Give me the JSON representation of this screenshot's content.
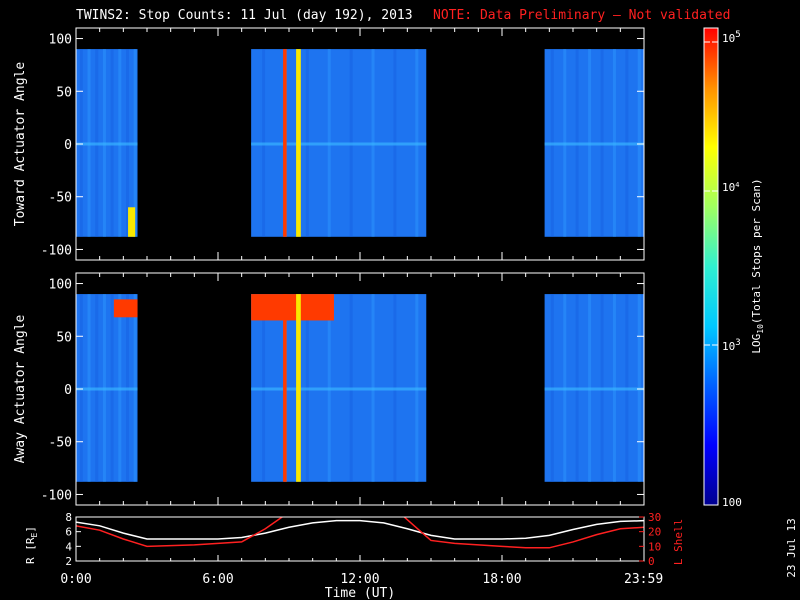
{
  "header": {
    "title": "TWINS2: Stop Counts: 11 Jul (day 192), 2013",
    "note": "NOTE: Data Preliminary — Not validated",
    "note_color": "#ff2020"
  },
  "footer": {
    "date_stamp": "23 Jul 13"
  },
  "chart_data": [
    {
      "type": "heatmap",
      "panel": "toward",
      "ylabel": "Toward Actuator Angle",
      "ylim": [
        -110,
        110
      ],
      "y_ticks": [
        "100",
        "50",
        "0",
        "-50",
        "-100"
      ],
      "x_range_hours": [
        0,
        24
      ],
      "data_blocks_hours": [
        [
          0.0,
          2.6
        ],
        [
          7.4,
          14.8
        ],
        [
          19.8,
          24.0
        ]
      ],
      "angle_range": [
        -88,
        90
      ],
      "enhanced_features": [
        {
          "start": 8.75,
          "end": 8.9,
          "level": "high"
        },
        {
          "start": 9.3,
          "end": 9.5,
          "level": "medium"
        },
        {
          "start": 2.2,
          "end": 2.5,
          "angle": [
            -88,
            -60
          ],
          "level": "medium"
        }
      ]
    },
    {
      "type": "heatmap",
      "panel": "away",
      "ylabel": "Away Actuator Angle",
      "ylim": [
        -110,
        110
      ],
      "y_ticks": [
        "100",
        "50",
        "0",
        "-50",
        "-100"
      ],
      "x_range_hours": [
        0,
        24
      ],
      "data_blocks_hours": [
        [
          0.0,
          2.6
        ],
        [
          7.4,
          14.8
        ],
        [
          19.8,
          24.0
        ]
      ],
      "angle_range": [
        -88,
        90
      ],
      "enhanced_features": [
        {
          "start": 7.4,
          "end": 10.9,
          "angle": [
            65,
            90
          ],
          "level": "high"
        },
        {
          "start": 1.6,
          "end": 2.6,
          "angle": [
            68,
            85
          ],
          "level": "high"
        },
        {
          "start": 8.75,
          "end": 8.9,
          "level": "high"
        },
        {
          "start": 9.3,
          "end": 9.5,
          "level": "medium"
        }
      ]
    },
    {
      "type": "line",
      "panel": "ephemeris",
      "ylabel_left": "R [R",
      "ylabel_left_sub": "E",
      "ylabel_left_close": "]",
      "ylabel_right": "L Shell",
      "ylim_left": [
        2,
        8
      ],
      "ylim_right": [
        0,
        30
      ],
      "left_ticks": [
        "8",
        "6",
        "4",
        "2"
      ],
      "right_ticks": [
        "30",
        "20",
        "10",
        "0"
      ],
      "series": [
        {
          "color": "#ffffff",
          "x": [
            0,
            1,
            2,
            3,
            4,
            5,
            6,
            7,
            8,
            9,
            10,
            11,
            12,
            13,
            14,
            15,
            16,
            17,
            18,
            19,
            20,
            21,
            22,
            23,
            24
          ],
          "y": [
            7.3,
            6.8,
            5.8,
            5.0,
            5.0,
            5.0,
            5.0,
            5.2,
            5.8,
            6.6,
            7.2,
            7.5,
            7.5,
            7.2,
            6.4,
            5.5,
            5.0,
            5.0,
            5.0,
            5.1,
            5.5,
            6.3,
            7.0,
            7.4,
            7.5
          ]
        },
        {
          "axis": "right",
          "color": "#ff2020",
          "x": [
            0,
            1,
            2,
            3,
            4,
            5,
            6,
            7,
            8,
            8.8,
            13.8,
            14.5,
            15,
            16,
            17,
            18,
            19,
            20,
            21,
            22,
            23,
            24
          ],
          "y": [
            24,
            21,
            15,
            10,
            10.5,
            11,
            12,
            13,
            22,
            31,
            31,
            21,
            14,
            12,
            11,
            10,
            9,
            9,
            13,
            18,
            22,
            23
          ]
        }
      ]
    }
  ],
  "x_axis": {
    "label": "Time (UT)",
    "tick_labels": [
      "0:00",
      "6:00",
      "12:00",
      "18:00",
      "23:59"
    ],
    "tick_hours": [
      0,
      6,
      12,
      18,
      23.983
    ]
  },
  "colorbar": {
    "label_prefix": "LOG",
    "label_sub": "10",
    "label_suffix": "(Total Stops per Scan)",
    "tick_bases": [
      "10",
      "10",
      "10"
    ],
    "tick_exponents": [
      "5",
      "4",
      "3"
    ],
    "bottom_label": "100",
    "stops": [
      "#000090",
      "#0000ff",
      "#0060ff",
      "#00c8ff",
      "#30f0d0",
      "#a0ff60",
      "#ffff00",
      "#ff9000",
      "#ff0000"
    ]
  }
}
